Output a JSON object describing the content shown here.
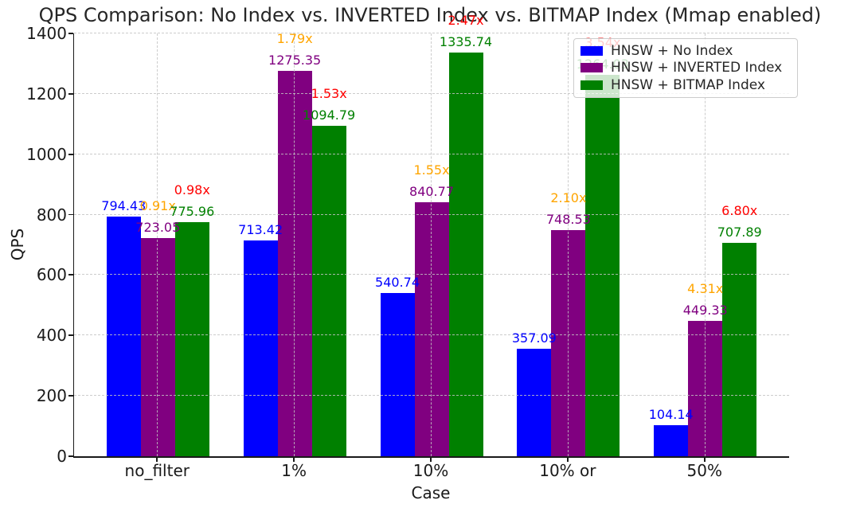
{
  "chart_data": {
    "type": "bar",
    "title": "QPS Comparison: No Index vs. INVERTED Index vs. BITMAP Index (Mmap enabled)",
    "xlabel": "Case",
    "ylabel": "QPS",
    "ylim": [
      0,
      1400
    ],
    "yticks": [
      0,
      200,
      400,
      600,
      800,
      1000,
      1200,
      1400
    ],
    "categories": [
      "no_filter",
      "1%",
      "10%",
      "10% or",
      "50%"
    ],
    "grid": true,
    "legend_position": "upper right",
    "series": [
      {
        "name": "HNSW + No Index",
        "color": "#0000ff",
        "values": [
          794.43,
          713.42,
          540.74,
          357.09,
          104.14
        ]
      },
      {
        "name": "HNSW + INVERTED Index",
        "color": "#800080",
        "ratio_color": "#ffa500",
        "values": [
          723.05,
          1275.35,
          840.77,
          748.53,
          449.33
        ],
        "ratio_labels": [
          "0.91x",
          "1.79x",
          "1.55x",
          "2.10x",
          "4.31x"
        ]
      },
      {
        "name": "HNSW + BITMAP Index",
        "color": "#008000",
        "ratio_color": "#ff0000",
        "values": [
          775.96,
          1094.79,
          1335.74,
          1264.03,
          707.89
        ],
        "ratio_labels": [
          "0.98x",
          "1.53x",
          "2.47x",
          "3.54x",
          "6.80x"
        ]
      }
    ]
  }
}
